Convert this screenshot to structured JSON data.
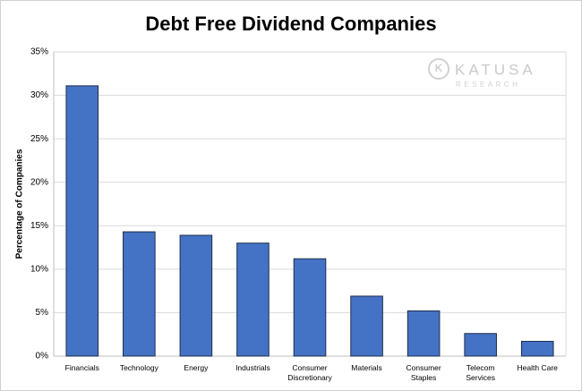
{
  "chart_data": {
    "type": "bar",
    "title": "Debt Free Dividend Companies",
    "y_label": "Percentage of Companies",
    "watermark": {
      "name": "KATUSA",
      "subtitle": "RESEARCH"
    },
    "categories": [
      "Financials",
      "Technology",
      "Energy",
      "Industrials",
      "Consumer Discretionary",
      "Materials",
      "Consumer Staples",
      "Telecom Services",
      "Health Care"
    ],
    "values": [
      31.1,
      14.3,
      13.9,
      13.0,
      11.2,
      6.9,
      5.2,
      2.6,
      1.7
    ],
    "color": "#4472c4",
    "ylim": [
      0,
      35
    ],
    "yticks": [
      {
        "value": 0,
        "label": "0%"
      },
      {
        "value": 5,
        "label": "5%"
      },
      {
        "value": 10,
        "label": "10%"
      },
      {
        "value": 15,
        "label": "15%"
      },
      {
        "value": 20,
        "label": "20%"
      },
      {
        "value": 25,
        "label": "25%"
      },
      {
        "value": 30,
        "label": "30%"
      },
      {
        "value": 35,
        "label": "35%"
      }
    ],
    "grid": true
  }
}
